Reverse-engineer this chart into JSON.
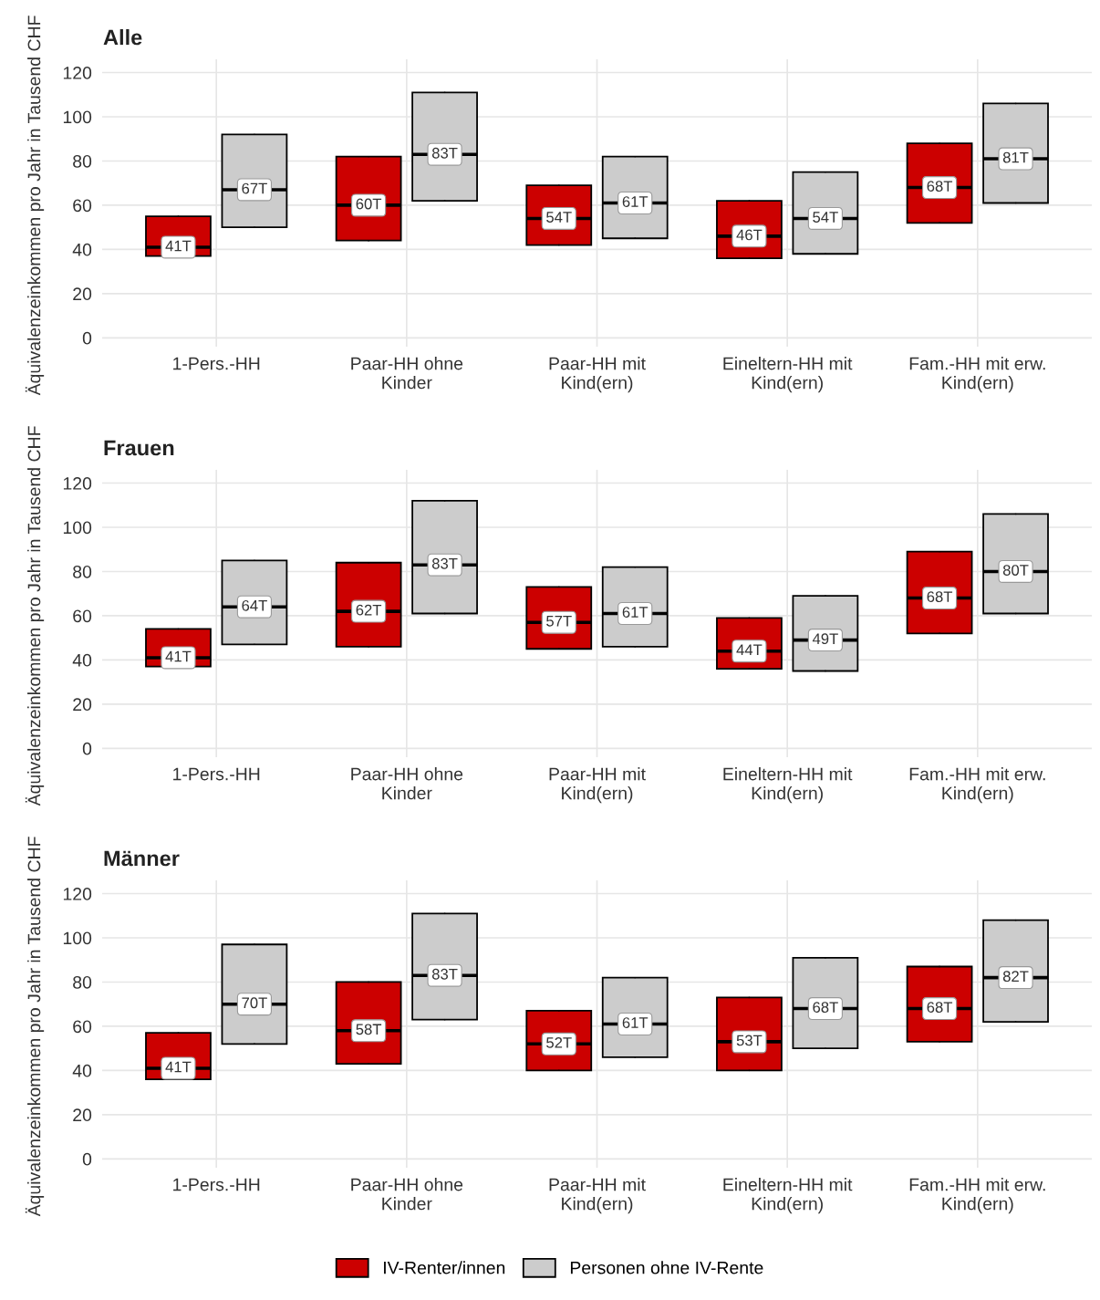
{
  "chart_data": [
    {
      "type": "box",
      "title": "Alle",
      "ylabel": "Äquivalenzeinkommen pro Jahr in Tausend CHF",
      "categories": [
        "1-Pers.-HH",
        "Paar-HH ohne\nKinder",
        "Paar-HH mit\nKind(ern)",
        "Eineltern-HH mit\nKind(ern)",
        "Fam.-HH mit erw.\nKind(ern)"
      ],
      "ylim": [
        -4,
        126
      ],
      "yticks": [
        0,
        20,
        40,
        60,
        80,
        100,
        120
      ],
      "grid": true,
      "legend": "bottom",
      "series": [
        {
          "name": "IV-Renter/innen",
          "color": "#cc0000",
          "value_labels": [
            "41T",
            "60T",
            "54T",
            "46T",
            "68T"
          ],
          "boxes": [
            {
              "low": 37,
              "q1": 37,
              "median": 41,
              "q3": 55,
              "high": 55
            },
            {
              "low": 44,
              "q1": 44,
              "median": 60,
              "q3": 82,
              "high": 82
            },
            {
              "low": 42,
              "q1": 42,
              "median": 54,
              "q3": 69,
              "high": 69
            },
            {
              "low": 36,
              "q1": 36,
              "median": 46,
              "q3": 62,
              "high": 62
            },
            {
              "low": 52,
              "q1": 52,
              "median": 68,
              "q3": 88,
              "high": 88
            }
          ]
        },
        {
          "name": "Personen ohne IV-Rente",
          "color": "#cccccc",
          "value_labels": [
            "67T",
            "83T",
            "61T",
            "54T",
            "81T"
          ],
          "boxes": [
            {
              "low": 50,
              "q1": 50,
              "median": 67,
              "q3": 92,
              "high": 92
            },
            {
              "low": 62,
              "q1": 62,
              "median": 83,
              "q3": 111,
              "high": 111
            },
            {
              "low": 45,
              "q1": 45,
              "median": 61,
              "q3": 82,
              "high": 82
            },
            {
              "low": 38,
              "q1": 38,
              "median": 54,
              "q3": 75,
              "high": 75
            },
            {
              "low": 61,
              "q1": 61,
              "median": 81,
              "q3": 106,
              "high": 106
            }
          ]
        }
      ]
    },
    {
      "type": "box",
      "title": "Frauen",
      "ylabel": "Äquivalenzeinkommen pro Jahr in Tausend CHF",
      "categories": [
        "1-Pers.-HH",
        "Paar-HH ohne\nKinder",
        "Paar-HH mit\nKind(ern)",
        "Eineltern-HH mit\nKind(ern)",
        "Fam.-HH mit erw.\nKind(ern)"
      ],
      "ylim": [
        -4,
        126
      ],
      "yticks": [
        0,
        20,
        40,
        60,
        80,
        100,
        120
      ],
      "grid": true,
      "series": [
        {
          "color": "#cc0000",
          "value_labels": [
            "41T",
            "62T",
            "57T",
            "44T",
            "68T"
          ],
          "boxes": [
            {
              "low": 37,
              "q1": 37,
              "median": 41,
              "q3": 54,
              "high": 54
            },
            {
              "low": 46,
              "q1": 46,
              "median": 62,
              "q3": 84,
              "high": 84
            },
            {
              "low": 45,
              "q1": 45,
              "median": 57,
              "q3": 73,
              "high": 73
            },
            {
              "low": 36,
              "q1": 36,
              "median": 44,
              "q3": 59,
              "high": 59
            },
            {
              "low": 52,
              "q1": 52,
              "median": 68,
              "q3": 89,
              "high": 89
            }
          ]
        },
        {
          "color": "#cccccc",
          "value_labels": [
            "64T",
            "83T",
            "61T",
            "49T",
            "80T"
          ],
          "boxes": [
            {
              "low": 47,
              "q1": 47,
              "median": 64,
              "q3": 85,
              "high": 85
            },
            {
              "low": 61,
              "q1": 61,
              "median": 83,
              "q3": 112,
              "high": 112
            },
            {
              "low": 46,
              "q1": 46,
              "median": 61,
              "q3": 82,
              "high": 82
            },
            {
              "low": 35,
              "q1": 35,
              "median": 49,
              "q3": 69,
              "high": 69
            },
            {
              "low": 61,
              "q1": 61,
              "median": 80,
              "q3": 106,
              "high": 106
            }
          ]
        }
      ]
    },
    {
      "type": "box",
      "title": "Männer",
      "ylabel": "Äquivalenzeinkommen pro Jahr in Tausend CHF",
      "categories": [
        "1-Pers.-HH",
        "Paar-HH ohne\nKinder",
        "Paar-HH mit\nKind(ern)",
        "Eineltern-HH mit\nKind(ern)",
        "Fam.-HH mit erw.\nKind(ern)"
      ],
      "ylim": [
        -4,
        126
      ],
      "yticks": [
        0,
        20,
        40,
        60,
        80,
        100,
        120
      ],
      "grid": true,
      "series": [
        {
          "color": "#cc0000",
          "value_labels": [
            "41T",
            "58T",
            "52T",
            "53T",
            "68T"
          ],
          "boxes": [
            {
              "low": 36,
              "q1": 36,
              "median": 41,
              "q3": 57,
              "high": 57
            },
            {
              "low": 43,
              "q1": 43,
              "median": 58,
              "q3": 80,
              "high": 80
            },
            {
              "low": 40,
              "q1": 40,
              "median": 52,
              "q3": 67,
              "high": 67
            },
            {
              "low": 40,
              "q1": 40,
              "median": 53,
              "q3": 73,
              "high": 73
            },
            {
              "low": 53,
              "q1": 53,
              "median": 68,
              "q3": 87,
              "high": 87
            }
          ]
        },
        {
          "color": "#cccccc",
          "value_labels": [
            "70T",
            "83T",
            "61T",
            "68T",
            "82T"
          ],
          "boxes": [
            {
              "low": 52,
              "q1": 52,
              "median": 70,
              "q3": 97,
              "high": 97
            },
            {
              "low": 63,
              "q1": 63,
              "median": 83,
              "q3": 111,
              "high": 111
            },
            {
              "low": 46,
              "q1": 46,
              "median": 61,
              "q3": 82,
              "high": 82
            },
            {
              "low": 50,
              "q1": 50,
              "median": 68,
              "q3": 91,
              "high": 91
            },
            {
              "low": 62,
              "q1": 62,
              "median": 82,
              "q3": 108,
              "high": 108
            }
          ]
        }
      ]
    }
  ]
}
